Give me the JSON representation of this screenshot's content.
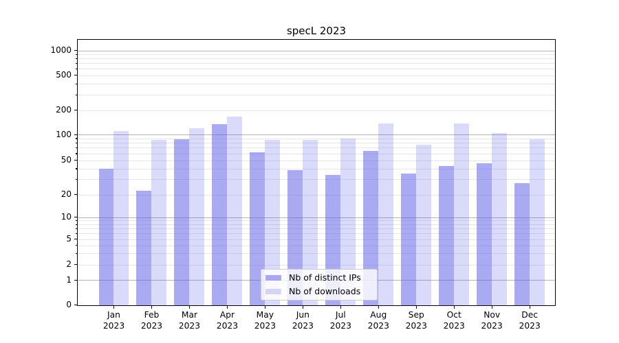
{
  "chart_data": {
    "type": "bar",
    "title": "specL 2023",
    "x": {
      "months": [
        "Jan",
        "Feb",
        "Mar",
        "Apr",
        "May",
        "Jun",
        "Jul",
        "Aug",
        "Sep",
        "Oct",
        "Nov",
        "Dec"
      ],
      "year": "2023"
    },
    "series": [
      {
        "name": "Nb of distinct IPs",
        "color": "rgba(85,85,230,0.5)",
        "color_hex_on_white": "#aaaaf2",
        "values": [
          40,
          22,
          88,
          135,
          62,
          38,
          34,
          64,
          35,
          43,
          46,
          27
        ]
      },
      {
        "name": "Nb of downloads",
        "color": "rgba(85,85,230,0.22)",
        "color_hex_on_white": "#d9d9f8",
        "values": [
          110,
          87,
          120,
          165,
          86,
          87,
          90,
          138,
          76,
          137,
          104,
          88
        ]
      }
    ],
    "yscale": "symlog",
    "y_tick_labels": [
      "0",
      "1",
      "2",
      "5",
      "10",
      "20",
      "50",
      "100",
      "200",
      "500",
      "1000"
    ],
    "y_tick_values": [
      0,
      1,
      2,
      5,
      10,
      20,
      50,
      100,
      200,
      500,
      1000
    ],
    "minor_grid_values": [
      2,
      3,
      4,
      5,
      6,
      7,
      8,
      9,
      20,
      30,
      40,
      50,
      60,
      70,
      80,
      90,
      200,
      300,
      400,
      500,
      600,
      700,
      800,
      900
    ],
    "major_grid_values": [
      1,
      10,
      100,
      1000
    ],
    "ylim": [
      0,
      1340
    ],
    "grid": true,
    "legend": {
      "position": "lower-center"
    },
    "colors": {
      "major_grid": "#b3b3b3",
      "minor_grid": "#e6e6e6",
      "spine": "#000000",
      "background": "#ffffff",
      "text": "#000000"
    }
  }
}
